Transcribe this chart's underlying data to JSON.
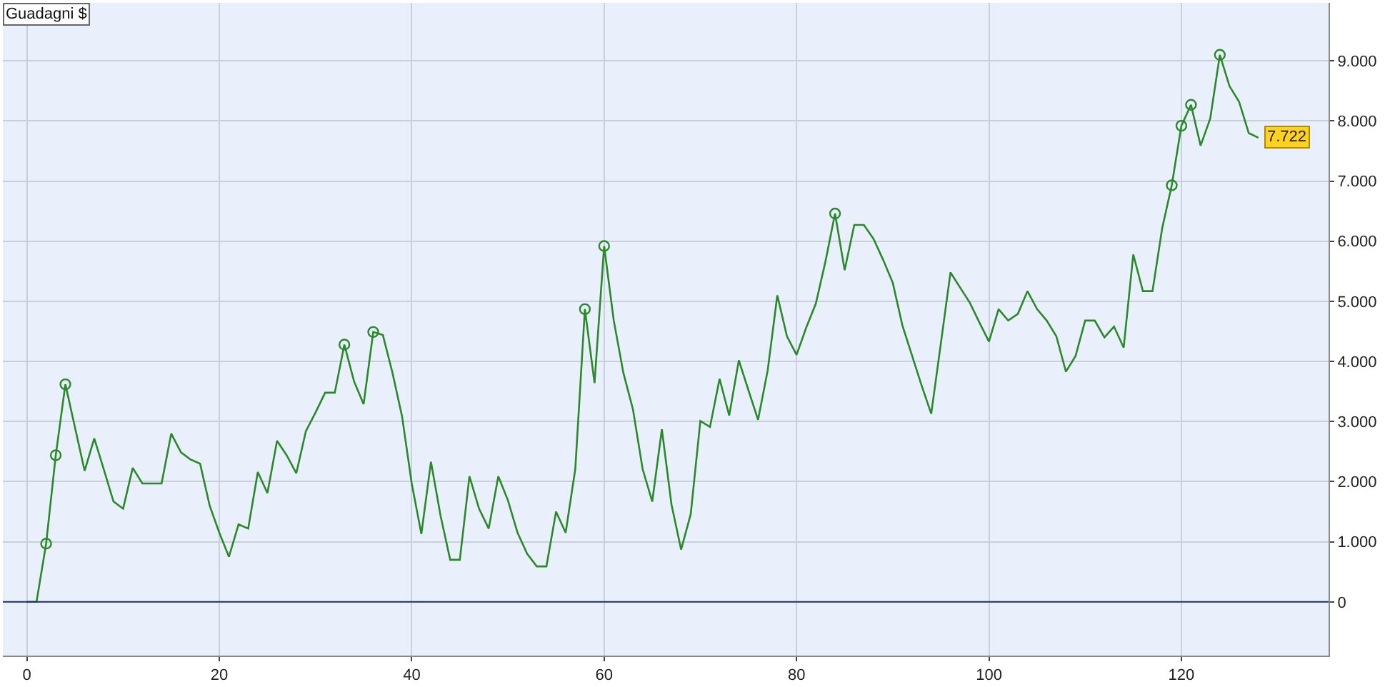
{
  "chart_data": {
    "type": "line",
    "title": "Guadagni $",
    "x": [
      0,
      1,
      2,
      3,
      4,
      5,
      6,
      7,
      8,
      9,
      10,
      11,
      12,
      13,
      14,
      15,
      16,
      17,
      18,
      19,
      20,
      21,
      22,
      23,
      24,
      25,
      26,
      27,
      28,
      29,
      30,
      31,
      32,
      33,
      34,
      35,
      36,
      37,
      38,
      39,
      40,
      41,
      42,
      43,
      44,
      45,
      46,
      47,
      48,
      49,
      50,
      51,
      52,
      53,
      54,
      55,
      56,
      57,
      58,
      59,
      60,
      61,
      62,
      63,
      64,
      65,
      66,
      67,
      68,
      69,
      70,
      71,
      72,
      73,
      74,
      75,
      76,
      77,
      78,
      79,
      80,
      81,
      82,
      83,
      84,
      85,
      86,
      87,
      88,
      89,
      90,
      91,
      92,
      93,
      94,
      95,
      96,
      97,
      98,
      99,
      100,
      101,
      102,
      103,
      104,
      105,
      106,
      107,
      108,
      109,
      110,
      111,
      112,
      113,
      114,
      115,
      116,
      117,
      118,
      119,
      120,
      121,
      122,
      123,
      124,
      125,
      126,
      127,
      128
    ],
    "series": [
      {
        "color": "#2a8a2a",
        "values": [
          0,
          0,
          970,
          2440,
          3620,
          2900,
          2180,
          2720,
          2200,
          1670,
          1550,
          2230,
          1970,
          1970,
          1970,
          2800,
          2490,
          2370,
          2300,
          1600,
          1150,
          750,
          1290,
          1220,
          2160,
          1810,
          2680,
          2440,
          2140,
          2840,
          3150,
          3480,
          3480,
          4280,
          3670,
          3290,
          4490,
          4440,
          3810,
          3080,
          1970,
          1130,
          2330,
          1430,
          700,
          700,
          2090,
          1550,
          1220,
          2090,
          1690,
          1150,
          800,
          590,
          590,
          1500,
          1150,
          2210,
          4870,
          3640,
          5920,
          4680,
          3810,
          3200,
          2210,
          1670,
          2870,
          1620,
          870,
          1460,
          3010,
          2910,
          3710,
          3100,
          4020,
          3520,
          3030,
          3850,
          5100,
          4420,
          4110,
          4560,
          4960,
          5660,
          6460,
          5520,
          6270,
          6270,
          6040,
          5690,
          5310,
          4600,
          4100,
          3600,
          3130,
          4300,
          5480,
          5230,
          4980,
          4650,
          4330,
          4870,
          4680,
          4790,
          5170,
          4870,
          4680,
          4420,
          3830,
          4090,
          4680,
          4680,
          4400,
          4580,
          4230,
          5780,
          5170,
          5170,
          6210,
          6930,
          7920,
          8270,
          7590,
          8040,
          9100,
          8580,
          8320,
          7800,
          7722
        ]
      },
      {
        "type": "scatter",
        "marker": "circle",
        "color": "#2a8a2a",
        "x": [
          2,
          3,
          4,
          33,
          36,
          58,
          60,
          84,
          119,
          120,
          121,
          124
        ],
        "values": [
          970,
          2440,
          3620,
          4280,
          4490,
          4870,
          5920,
          6460,
          6930,
          7920,
          8270,
          9100
        ]
      }
    ],
    "xlim": [
      -2.5,
      135.3
    ],
    "ylim": [
      -893,
      9965
    ],
    "xticks": [
      0,
      20,
      40,
      60,
      80,
      100,
      120
    ],
    "yticks": [
      {
        "value": 0,
        "label": "0"
      },
      {
        "value": 1000,
        "label": "1.000"
      },
      {
        "value": 2000,
        "label": "2.000"
      },
      {
        "value": 3000,
        "label": "3.000"
      },
      {
        "value": 4000,
        "label": "4.000"
      },
      {
        "value": 5000,
        "label": "5.000"
      },
      {
        "value": 6000,
        "label": "6.000"
      },
      {
        "value": 7000,
        "label": "7.000"
      },
      {
        "value": 8000,
        "label": "8.000"
      },
      {
        "value": 9000,
        "label": "9.000"
      }
    ],
    "grid": true,
    "marker": "none",
    "ref_lines": [
      {
        "axis": "y",
        "value": 0,
        "color": "#1f2f6b"
      }
    ],
    "annotations": [
      {
        "text": "7.722",
        "x": 128,
        "y": 7722
      }
    ]
  }
}
